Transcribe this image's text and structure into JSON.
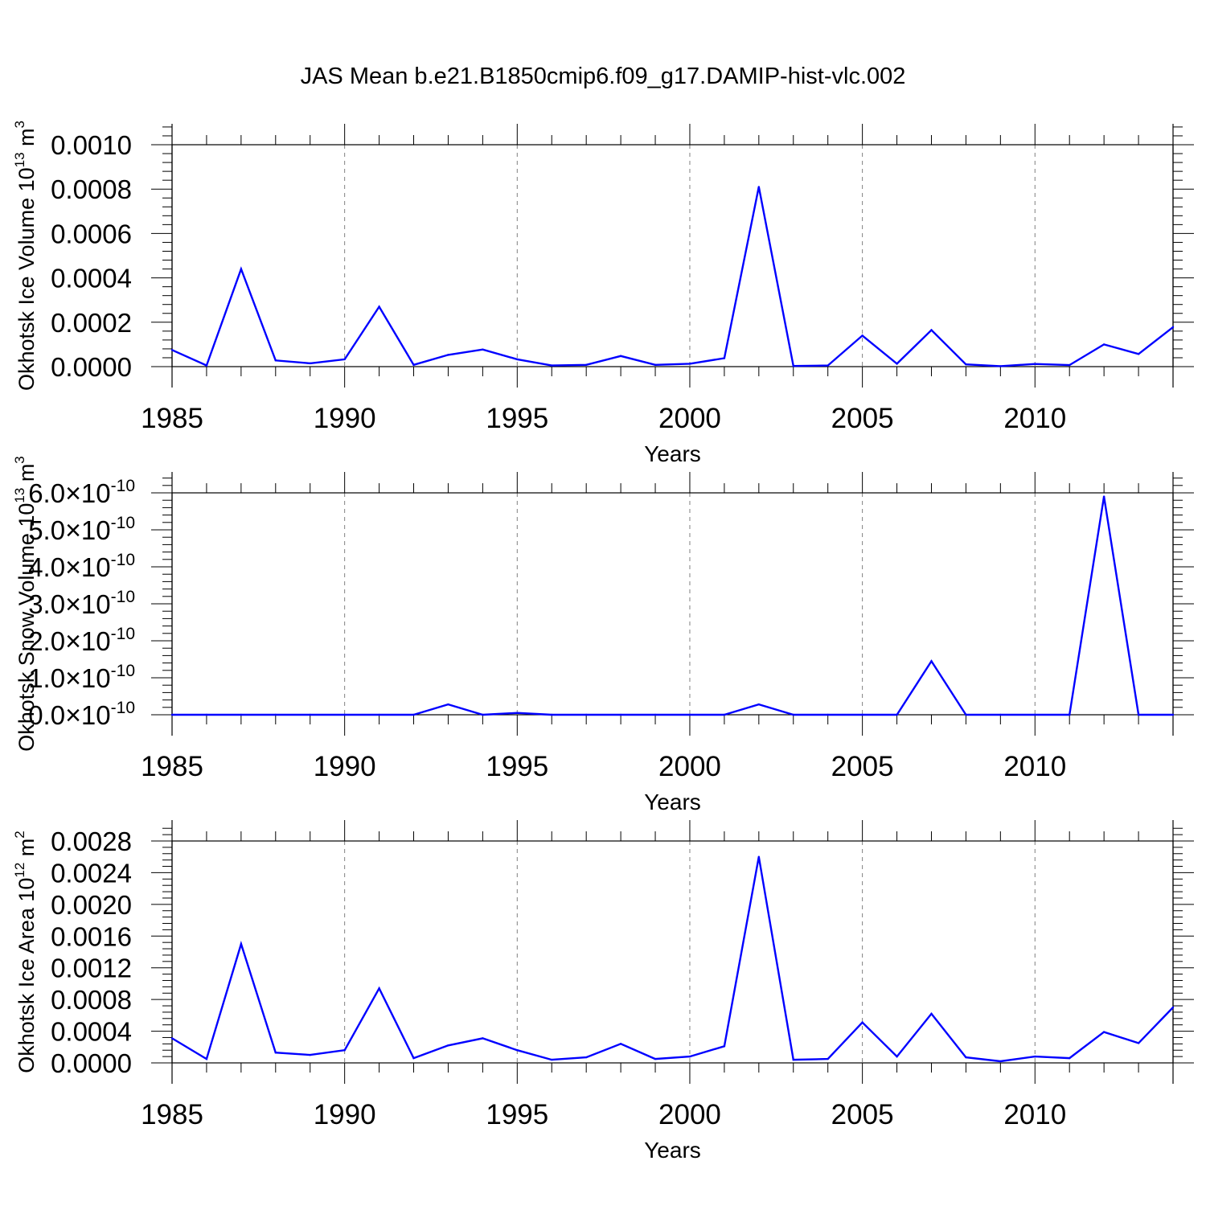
{
  "title": "JAS Mean b.e21.B1850cmip6.f09_g17.DAMIP-hist-vlc.002",
  "colors": {
    "series": "#0000ff",
    "axis": "#000000",
    "grid": "#808080"
  },
  "chart_data": [
    {
      "type": "line",
      "ylabel": "Okhotsk Ice Volume 10",
      "ylabel_sup": "13",
      "ylabel_unit": "m",
      "ylabel_unit_sup": "3",
      "xlabel": "Years",
      "xlim": [
        1985,
        2014
      ],
      "ylim": [
        0,
        0.001
      ],
      "x_tick_labels": [
        "1985",
        "1990",
        "1995",
        "2000",
        "2005",
        "2010"
      ],
      "y_tick_values": [
        0,
        0.0002,
        0.0004,
        0.0006,
        0.0008,
        0.001
      ],
      "y_tick_labels": [
        "0.0000",
        "0.0002",
        "0.0004",
        "0.0006",
        "0.0008",
        "0.0010"
      ],
      "grid": "vertical dashed at major x ticks",
      "x": [
        1985,
        1986,
        1987,
        1988,
        1989,
        1990,
        1991,
        1992,
        1993,
        1994,
        1995,
        1996,
        1997,
        1998,
        1999,
        2000,
        2001,
        2002,
        2003,
        2004,
        2005,
        2006,
        2007,
        2008,
        2009,
        2010,
        2011,
        2012,
        2013,
        2014
      ],
      "values": [
        7.5e-05,
        5e-06,
        0.00044,
        2.8e-05,
        1.5e-05,
        3.3e-05,
        0.00027,
        8e-06,
        5.3e-05,
        7.7e-05,
        3.3e-05,
        5e-06,
        8e-06,
        4.8e-05,
        8e-06,
        1.3e-05,
        3.8e-05,
        0.00081,
        3e-06,
        5e-06,
        0.00014,
        1.3e-05,
        0.000165,
        1e-05,
        2e-06,
        1.2e-05,
        7e-06,
        0.0001,
        5.7e-05,
        0.000178
      ]
    },
    {
      "type": "line",
      "ylabel": "Okhotsk Snow Volume 10",
      "ylabel_sup": "13",
      "ylabel_unit": "m",
      "ylabel_unit_sup": "3",
      "xlabel": "Years",
      "xlim": [
        1985,
        2014
      ],
      "ylim": [
        0,
        6e-10
      ],
      "x_tick_labels": [
        "1985",
        "1990",
        "1995",
        "2000",
        "2005",
        "2010"
      ],
      "y_tick_values": [
        0,
        1e-10,
        2e-10,
        3e-10,
        4e-10,
        5e-10,
        6e-10
      ],
      "y_tick_mantissas": [
        "0.0",
        "1.0",
        "2.0",
        "3.0",
        "4.0",
        "5.0",
        "6.0"
      ],
      "y_tick_times": "×",
      "y_tick_base": "10",
      "y_tick_exponent": "-10",
      "grid": "vertical dashed at major x ticks",
      "x": [
        1985,
        1986,
        1987,
        1988,
        1989,
        1990,
        1991,
        1992,
        1993,
        1994,
        1995,
        1996,
        1997,
        1998,
        1999,
        2000,
        2001,
        2002,
        2003,
        2004,
        2005,
        2006,
        2007,
        2008,
        2009,
        2010,
        2011,
        2012,
        2013,
        2014
      ],
      "values": [
        0,
        0,
        0,
        0,
        0,
        0,
        0,
        0,
        2.8e-11,
        0,
        5e-12,
        0,
        0,
        0,
        0,
        0,
        0,
        2.8e-11,
        0,
        0,
        0,
        0,
        1.45e-10,
        0,
        0,
        0,
        0,
        5.9e-10,
        0,
        0
      ]
    },
    {
      "type": "line",
      "ylabel": "Okhotsk Ice Area 10",
      "ylabel_sup": "12",
      "ylabel_unit": "m",
      "ylabel_unit_sup": "2",
      "xlabel": "Years",
      "xlim": [
        1985,
        2014
      ],
      "ylim": [
        0,
        0.0028
      ],
      "x_tick_labels": [
        "1985",
        "1990",
        "1995",
        "2000",
        "2005",
        "2010"
      ],
      "y_tick_values": [
        0,
        0.0004,
        0.0008,
        0.0012,
        0.0016,
        0.002,
        0.0024,
        0.0028
      ],
      "y_tick_labels": [
        "0.0000",
        "0.0004",
        "0.0008",
        "0.0012",
        "0.0016",
        "0.0020",
        "0.0024",
        "0.0028"
      ],
      "grid": "vertical dashed at major x ticks",
      "x": [
        1985,
        1986,
        1987,
        1988,
        1989,
        1990,
        1991,
        1992,
        1993,
        1994,
        1995,
        1996,
        1997,
        1998,
        1999,
        2000,
        2001,
        2002,
        2003,
        2004,
        2005,
        2006,
        2007,
        2008,
        2009,
        2010,
        2011,
        2012,
        2013,
        2014
      ],
      "values": [
        0.00031,
        5e-05,
        0.0015,
        0.00013,
        0.0001,
        0.00016,
        0.00094,
        6e-05,
        0.00022,
        0.00031,
        0.00016,
        4e-05,
        7e-05,
        0.00024,
        5e-05,
        8e-05,
        0.00021,
        0.0026,
        4e-05,
        5e-05,
        0.00051,
        8e-05,
        0.00062,
        7e-05,
        2e-05,
        8e-05,
        6e-05,
        0.00039,
        0.00025,
        0.0007
      ]
    }
  ]
}
